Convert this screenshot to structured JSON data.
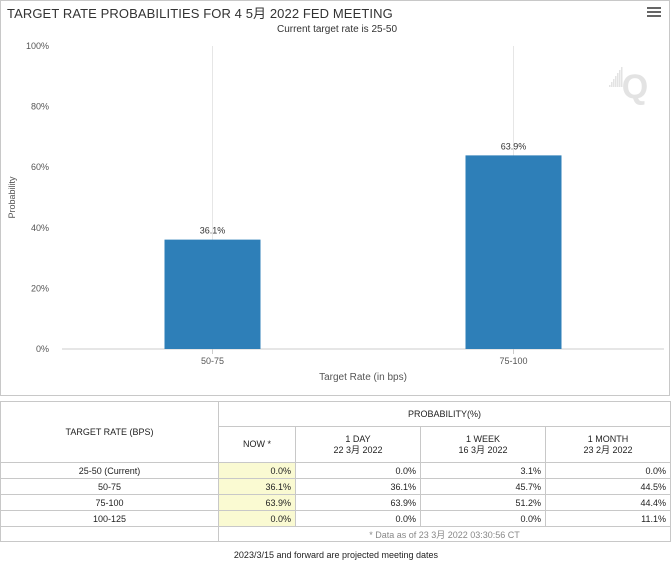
{
  "title": "TARGET RATE PROBABILITIES FOR 4 5月 2022 FED MEETING",
  "subtitle": "Current target rate is 25-50",
  "chart_data": {
    "type": "bar",
    "categories": [
      "50-75",
      "75-100"
    ],
    "values": [
      36.1,
      63.9
    ],
    "data_labels": [
      "36.1%",
      "63.9%"
    ],
    "xlabel": "Target Rate (in bps)",
    "ylabel": "Probability",
    "ylim": [
      0,
      100
    ],
    "yticks": [
      "0%",
      "20%",
      "40%",
      "60%",
      "80%",
      "100%"
    ],
    "bar_color": "#2e7fb8",
    "vertical_grid": true
  },
  "watermark": "Q",
  "table": {
    "rate_header": "TARGET RATE (BPS)",
    "prob_header": "PROBABILITY(%)",
    "columns": [
      {
        "line1": "NOW *",
        "line2": ""
      },
      {
        "line1": "1 DAY",
        "line2": "22 3月 2022"
      },
      {
        "line1": "1 WEEK",
        "line2": "16 3月 2022"
      },
      {
        "line1": "1 MONTH",
        "line2": "23 2月 2022"
      }
    ],
    "rows": [
      {
        "rate": "25-50 (Current)",
        "values": [
          "0.0%",
          "0.0%",
          "3.1%",
          "0.0%"
        ]
      },
      {
        "rate": "50-75",
        "values": [
          "36.1%",
          "36.1%",
          "45.7%",
          "44.5%"
        ]
      },
      {
        "rate": "75-100",
        "values": [
          "63.9%",
          "63.9%",
          "51.2%",
          "44.4%"
        ]
      },
      {
        "rate": "100-125",
        "values": [
          "0.0%",
          "0.0%",
          "0.0%",
          "11.1%"
        ]
      }
    ],
    "footnote": "* Data as of 23 3月 2022 03:30:56 CT"
  },
  "bottom_note": "2023/3/15 and forward are projected meeting dates"
}
